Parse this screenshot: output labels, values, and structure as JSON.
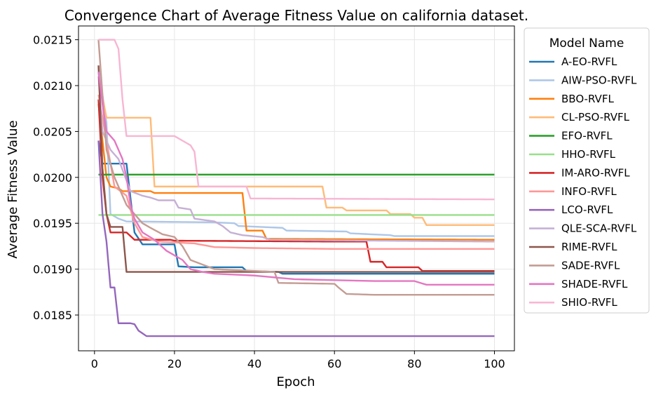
{
  "chart_data": {
    "type": "line",
    "title": "Convergence Chart of Average Fitness Value on california dataset.",
    "xlabel": "Epoch",
    "ylabel": "Average Fitness Value",
    "xlim": [
      -4,
      105
    ],
    "ylim": [
      0.01811,
      0.02165
    ],
    "xticks": [
      0,
      20,
      40,
      60,
      80,
      100
    ],
    "yticks": [
      0.0185,
      0.019,
      0.0195,
      0.02,
      0.0205,
      0.021,
      0.0215
    ],
    "ytick_labels": [
      "0.0185",
      "0.0190",
      "0.0195",
      "0.0200",
      "0.0205",
      "0.0210",
      "0.0215"
    ],
    "grid": true,
    "legend": {
      "title": "Model Name",
      "placement": "outside-right"
    },
    "series": [
      {
        "name": "A-EO-RVFL",
        "color": "#1f77b4",
        "points": [
          [
            1,
            0.0204
          ],
          [
            2,
            0.02015
          ],
          [
            8,
            0.02015
          ],
          [
            10,
            0.0194
          ],
          [
            12,
            0.01927
          ],
          [
            20,
            0.01927
          ],
          [
            21,
            0.01903
          ],
          [
            25,
            0.01902
          ],
          [
            37,
            0.01902
          ],
          [
            38,
            0.01898
          ],
          [
            46,
            0.01897
          ],
          [
            47,
            0.01895
          ],
          [
            100,
            0.01895
          ]
        ]
      },
      {
        "name": "AIW-PSO-RVFL",
        "color": "#aec7e8",
        "points": [
          [
            1,
            0.0212
          ],
          [
            3,
            0.0206
          ],
          [
            4,
            0.0196
          ],
          [
            6,
            0.01955
          ],
          [
            8,
            0.01952
          ],
          [
            30,
            0.01951
          ],
          [
            35,
            0.0195
          ],
          [
            36,
            0.01947
          ],
          [
            47,
            0.01945
          ],
          [
            48,
            0.01942
          ],
          [
            63,
            0.01941
          ],
          [
            64,
            0.01939
          ],
          [
            74,
            0.01937
          ],
          [
            75,
            0.01936
          ],
          [
            100,
            0.01936
          ]
        ]
      },
      {
        "name": "BBO-RVFL",
        "color": "#ff7f0e",
        "points": [
          [
            1,
            0.0208
          ],
          [
            3,
            0.02
          ],
          [
            4,
            0.0199
          ],
          [
            6,
            0.01988
          ],
          [
            7,
            0.01985
          ],
          [
            14,
            0.01985
          ],
          [
            15,
            0.01983
          ],
          [
            37,
            0.01983
          ],
          [
            38,
            0.01942
          ],
          [
            42,
            0.01942
          ],
          [
            43,
            0.01933
          ],
          [
            100,
            0.01932
          ]
        ]
      },
      {
        "name": "CL-PSO-RVFL",
        "color": "#ffbb78",
        "points": [
          [
            1,
            0.0211
          ],
          [
            3,
            0.02065
          ],
          [
            14,
            0.02065
          ],
          [
            15,
            0.0199
          ],
          [
            57,
            0.0199
          ],
          [
            58,
            0.01967
          ],
          [
            62,
            0.01967
          ],
          [
            63,
            0.01964
          ],
          [
            73,
            0.01964
          ],
          [
            74,
            0.0196
          ],
          [
            79,
            0.0196
          ],
          [
            80,
            0.01956
          ],
          [
            82,
            0.01956
          ],
          [
            83,
            0.01948
          ],
          [
            100,
            0.01948
          ]
        ]
      },
      {
        "name": "EFO-RVFL",
        "color": "#2ca02c",
        "points": [
          [
            1,
            0.02003
          ],
          [
            100,
            0.02003
          ]
        ]
      },
      {
        "name": "HHO-RVFL",
        "color": "#98df8a",
        "points": [
          [
            1,
            0.01959
          ],
          [
            100,
            0.01959
          ]
        ]
      },
      {
        "name": "IM-ARO-RVFL",
        "color": "#d62728",
        "points": [
          [
            1,
            0.02085
          ],
          [
            2,
            0.02
          ],
          [
            3,
            0.0196
          ],
          [
            4,
            0.0194
          ],
          [
            8,
            0.0194
          ],
          [
            10,
            0.01932
          ],
          [
            19,
            0.01932
          ],
          [
            20,
            0.01931
          ],
          [
            60,
            0.0193
          ],
          [
            68,
            0.0193
          ],
          [
            69,
            0.01908
          ],
          [
            72,
            0.01908
          ],
          [
            73,
            0.01902
          ],
          [
            81,
            0.01902
          ],
          [
            82,
            0.01898
          ],
          [
            100,
            0.01898
          ]
        ]
      },
      {
        "name": "INFO-RVFL",
        "color": "#ff9896",
        "points": [
          [
            1,
            0.0209
          ],
          [
            3,
            0.0204
          ],
          [
            5,
            0.0199
          ],
          [
            8,
            0.0198
          ],
          [
            10,
            0.0195
          ],
          [
            12,
            0.01935
          ],
          [
            16,
            0.0193
          ],
          [
            25,
            0.01928
          ],
          [
            30,
            0.01924
          ],
          [
            40,
            0.01923
          ],
          [
            60,
            0.01922
          ],
          [
            100,
            0.01922
          ]
        ]
      },
      {
        "name": "LCO-RVFL",
        "color": "#9467bd",
        "points": [
          [
            1,
            0.0204
          ],
          [
            2,
            0.0196
          ],
          [
            3,
            0.0193
          ],
          [
            4,
            0.0188
          ],
          [
            5,
            0.0188
          ],
          [
            6,
            0.01841
          ],
          [
            9,
            0.01841
          ],
          [
            10,
            0.0184
          ],
          [
            11,
            0.01833
          ],
          [
            12,
            0.0183
          ],
          [
            13,
            0.01827
          ],
          [
            100,
            0.01827
          ]
        ]
      },
      {
        "name": "QLE-SCA-RVFL",
        "color": "#c5b0d5",
        "points": [
          [
            1,
            0.0211
          ],
          [
            2,
            0.0205
          ],
          [
            4,
            0.0203
          ],
          [
            6,
            0.0202
          ],
          [
            9,
            0.01985
          ],
          [
            12,
            0.0198
          ],
          [
            14,
            0.01978
          ],
          [
            16,
            0.01975
          ],
          [
            20,
            0.01975
          ],
          [
            21,
            0.01967
          ],
          [
            24,
            0.01965
          ],
          [
            25,
            0.01955
          ],
          [
            30,
            0.01952
          ],
          [
            32,
            0.01947
          ],
          [
            34,
            0.0194
          ],
          [
            37,
            0.01937
          ],
          [
            42,
            0.01935
          ],
          [
            44,
            0.01932
          ],
          [
            100,
            0.0193
          ]
        ]
      },
      {
        "name": "RIME-RVFL",
        "color": "#8c564b",
        "points": [
          [
            1,
            0.02122
          ],
          [
            2,
            0.0201
          ],
          [
            3,
            0.0196
          ],
          [
            4,
            0.01946
          ],
          [
            7,
            0.01946
          ],
          [
            8,
            0.01897
          ],
          [
            100,
            0.01897
          ]
        ]
      },
      {
        "name": "SADE-RVFL",
        "color": "#c49c94",
        "points": [
          [
            1,
            0.0215
          ],
          [
            3,
            0.0203
          ],
          [
            5,
            0.02
          ],
          [
            8,
            0.0197
          ],
          [
            10,
            0.0196
          ],
          [
            12,
            0.0195
          ],
          [
            14,
            0.01945
          ],
          [
            17,
            0.01938
          ],
          [
            20,
            0.01935
          ],
          [
            22,
            0.01925
          ],
          [
            24,
            0.0191
          ],
          [
            27,
            0.01905
          ],
          [
            30,
            0.019
          ],
          [
            40,
            0.01898
          ],
          [
            45,
            0.01897
          ],
          [
            46,
            0.01885
          ],
          [
            60,
            0.01884
          ],
          [
            61,
            0.0188
          ],
          [
            63,
            0.01873
          ],
          [
            70,
            0.01872
          ],
          [
            100,
            0.01872
          ]
        ]
      },
      {
        "name": "SHADE-RVFL",
        "color": "#e377c2",
        "points": [
          [
            1,
            0.02115
          ],
          [
            2,
            0.0208
          ],
          [
            3,
            0.0205
          ],
          [
            5,
            0.0204
          ],
          [
            6,
            0.0203
          ],
          [
            7,
            0.0202
          ],
          [
            8,
            0.02
          ],
          [
            9,
            0.0197
          ],
          [
            10,
            0.01955
          ],
          [
            12,
            0.0194
          ],
          [
            15,
            0.01932
          ],
          [
            18,
            0.0192
          ],
          [
            20,
            0.01915
          ],
          [
            22,
            0.0191
          ],
          [
            24,
            0.019
          ],
          [
            27,
            0.01897
          ],
          [
            30,
            0.01895
          ],
          [
            40,
            0.01893
          ],
          [
            45,
            0.01891
          ],
          [
            50,
            0.01889
          ],
          [
            60,
            0.01888
          ],
          [
            70,
            0.01887
          ],
          [
            80,
            0.01887
          ],
          [
            83,
            0.01883
          ],
          [
            100,
            0.01883
          ]
        ]
      },
      {
        "name": "SHIO-RVFL",
        "color": "#f7b6d2",
        "points": [
          [
            1,
            0.0215
          ],
          [
            5,
            0.0215
          ],
          [
            6,
            0.0214
          ],
          [
            7,
            0.02085
          ],
          [
            8,
            0.02045
          ],
          [
            20,
            0.02045
          ],
          [
            22,
            0.0204
          ],
          [
            24,
            0.02035
          ],
          [
            25,
            0.02028
          ],
          [
            26,
            0.0199
          ],
          [
            38,
            0.0199
          ],
          [
            39,
            0.01977
          ],
          [
            100,
            0.01976
          ]
        ]
      }
    ]
  }
}
